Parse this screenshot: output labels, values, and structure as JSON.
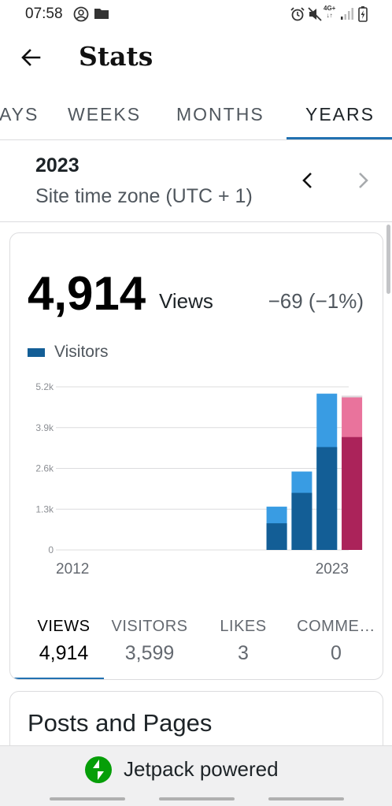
{
  "status_bar": {
    "time": "07:58",
    "left_icons": [
      "account-circle-icon",
      "folder-icon"
    ],
    "right_icons": [
      "alarm-icon",
      "mute-icon",
      "network-4g-icon",
      "signal-icon",
      "battery-charging-icon"
    ],
    "network_label": "4G+"
  },
  "header": {
    "title": "Stats",
    "back_icon": "arrow-back-icon"
  },
  "tabs": [
    {
      "label": "DAYS",
      "visible_label": "AYS",
      "active": false
    },
    {
      "label": "WEEKS",
      "visible_label": "WEEKS",
      "active": false
    },
    {
      "label": "MONTHS",
      "visible_label": "MONTHS",
      "active": false
    },
    {
      "label": "YEARS",
      "visible_label": "YEARS",
      "active": true
    }
  ],
  "date_selector": {
    "period": "2023",
    "timezone": "Site time zone (UTC + 1)",
    "prev_icon": "chevron-left-icon",
    "next_icon": "chevron-right-icon"
  },
  "summary": {
    "value": "4,914",
    "label": "Views",
    "delta": "−69 (−1%)"
  },
  "legend": {
    "label": "Visitors",
    "color": "#135e96"
  },
  "chart_data": {
    "type": "bar",
    "categories": [
      "2012",
      "2013",
      "2014",
      "2015",
      "2016",
      "2017",
      "2018",
      "2019",
      "2020",
      "2021",
      "2022",
      "2023"
    ],
    "x_tick_labels": [
      "2012",
      "2023"
    ],
    "series": [
      {
        "name": "Visitors",
        "values": [
          0,
          0,
          0,
          0,
          0,
          0,
          0,
          0,
          850,
          1820,
          3280,
          3599
        ]
      }
    ],
    "views": [
      0,
      0,
      0,
      0,
      0,
      0,
      0,
      0,
      1380,
      2500,
      4983,
      4914
    ],
    "y_tick_labels": [
      "0",
      "1.3k",
      "2.6k",
      "3.9k",
      "5.2k"
    ],
    "y_ticks": [
      0,
      1300,
      2600,
      3900,
      5200
    ],
    "ylim": [
      0,
      5200
    ],
    "grid": true,
    "highlighted_category": "2023",
    "colors": {
      "views": "#399ce3",
      "visitors": "#135e96",
      "views_selected": "#e9739c",
      "visitors_selected": "#ab235a",
      "grid": "#dcdcde"
    }
  },
  "stat_tabs": [
    {
      "label": "VIEWS",
      "value": "4,914",
      "active": true
    },
    {
      "label": "VISITORS",
      "value": "3,599",
      "active": false
    },
    {
      "label": "LIKES",
      "value": "3",
      "active": false
    },
    {
      "label": "COMME…",
      "value": "0",
      "active": false
    }
  ],
  "posts_card": {
    "title": "Posts and Pages"
  },
  "footer": {
    "text": "Jetpack powered",
    "logo_icon": "jetpack-bolt-icon",
    "logo_color": "#069e08"
  }
}
